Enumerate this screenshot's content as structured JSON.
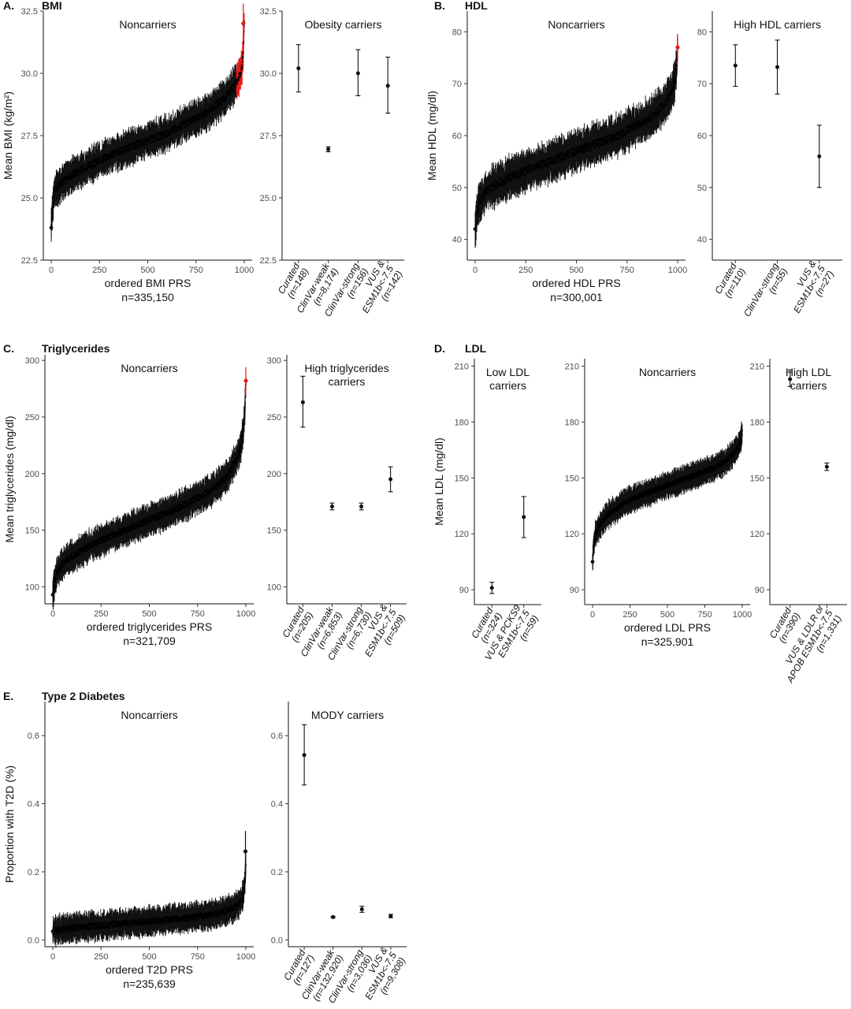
{
  "panels": [
    {
      "letter": "A.",
      "title": "BMI"
    },
    {
      "letter": "B.",
      "title": "HDL"
    },
    {
      "letter": "C.",
      "title": "Triglycerides"
    },
    {
      "letter": "D.",
      "title": "LDL"
    },
    {
      "letter": "E.",
      "title": "Type 2 Diabetes"
    }
  ],
  "chart_data": [
    {
      "id": "bmi-noncarriers",
      "type": "scatter",
      "panel": "A.",
      "title": "Noncarriers",
      "xlabel": "ordered BMI PRS",
      "xsublabel": "n=335,150",
      "ylabel": "Mean BMI (kg/m²)",
      "xlim": [
        0,
        1000
      ],
      "ylim": [
        22.5,
        32.5
      ],
      "xticks": [
        0,
        250,
        500,
        750,
        1000
      ],
      "yticks": [
        "22.5",
        "25.0",
        "27.5",
        "30.0",
        "32.5"
      ],
      "curve": {
        "x": [
          0,
          5,
          10,
          20,
          50,
          100,
          200,
          300,
          400,
          500,
          600,
          700,
          800,
          850,
          900,
          930,
          950,
          970,
          980,
          990,
          995,
          1000
        ],
        "y": [
          23.8,
          24.5,
          24.9,
          25.3,
          25.6,
          25.9,
          26.3,
          26.7,
          27.0,
          27.3,
          27.6,
          28.0,
          28.4,
          28.7,
          29.0,
          29.3,
          29.5,
          29.8,
          30.0,
          30.4,
          30.9,
          32.0
        ]
      },
      "error_halfwidth": 0.5,
      "highlight_from": 960,
      "highlight_color": "#e41a1c",
      "top_points": [
        {
          "x": 995,
          "y": 32.0,
          "err": 0.8
        }
      ]
    },
    {
      "id": "bmi-carriers",
      "type": "scatter",
      "panel": "A.",
      "title": "Obesity carriers",
      "ylim": [
        22.5,
        32.5
      ],
      "yticks": [
        "22.5",
        "25.0",
        "27.5",
        "30.0",
        "32.5"
      ],
      "categories": [
        "Curated\n(n=148)",
        "ClinVar-weak\n(n=8,174)",
        "ClinVar-strong\n(n=156)",
        "VUS &\nESM1b<-7.5\n(n=142)"
      ],
      "values": [
        30.2,
        26.95,
        30.0,
        29.5
      ],
      "lower": [
        29.25,
        26.85,
        29.1,
        28.4
      ],
      "upper": [
        31.15,
        27.05,
        30.95,
        30.65
      ]
    },
    {
      "id": "hdl-noncarriers",
      "type": "scatter",
      "panel": "B.",
      "title": "Noncarriers",
      "xlabel": "ordered HDL PRS",
      "xsublabel": "n=300,001",
      "ylabel": "Mean HDL (mg/dl)",
      "xlim": [
        0,
        1000
      ],
      "ylim": [
        36,
        84
      ],
      "xticks": [
        0,
        250,
        500,
        750,
        1000
      ],
      "yticks": [
        "40",
        "50",
        "60",
        "70",
        "80"
      ],
      "curve": {
        "x": [
          0,
          5,
          10,
          20,
          50,
          100,
          200,
          300,
          400,
          500,
          600,
          700,
          800,
          850,
          900,
          950,
          970,
          985,
          995,
          1000
        ],
        "y": [
          42,
          44,
          45.5,
          47,
          49,
          50.5,
          52.5,
          54,
          55.5,
          57,
          58.5,
          60,
          62,
          63,
          64.5,
          67,
          68.5,
          70.5,
          73,
          77
        ]
      },
      "error_halfwidth": 2.8,
      "highlight_from": 998,
      "highlight_color": "#e41a1c",
      "top_points": [
        {
          "x": 1000,
          "y": 77.0,
          "err": 2.0
        }
      ]
    },
    {
      "id": "hdl-carriers",
      "type": "scatter",
      "panel": "B.",
      "title": "High HDL carriers",
      "ylim": [
        36,
        84
      ],
      "yticks": [
        "40",
        "50",
        "60",
        "70",
        "80"
      ],
      "categories": [
        "Curated\n(n=110)",
        "ClinVar-strong\n(n=55)",
        "VUS &\nESM1b<-7.5\n(n=27)"
      ],
      "values": [
        73.5,
        73.2,
        56.0
      ],
      "lower": [
        69.5,
        68.0,
        50.0
      ],
      "upper": [
        77.5,
        78.4,
        62.0
      ]
    },
    {
      "id": "tg-noncarriers",
      "type": "scatter",
      "panel": "C.",
      "title": "Noncarriers",
      "xlabel": "ordered triglycerides PRS",
      "xsublabel": "n=321,709",
      "ylabel": "Mean triglycerides (mg/dl)",
      "xlim": [
        0,
        1000
      ],
      "ylim": [
        85,
        305
      ],
      "xticks": [
        0,
        250,
        500,
        750,
        1000
      ],
      "yticks": [
        "100",
        "150",
        "200",
        "250",
        "300"
      ],
      "curve": {
        "x": [
          0,
          5,
          10,
          20,
          50,
          100,
          200,
          300,
          400,
          500,
          600,
          700,
          800,
          850,
          900,
          950,
          970,
          985,
          995,
          1000
        ],
        "y": [
          93,
          100,
          106,
          112,
          120,
          127,
          137,
          145,
          152,
          159,
          166,
          174,
          183,
          189,
          197,
          212,
          222,
          235,
          255,
          282
        ]
      },
      "error_halfwidth": 10,
      "highlight_from": 998,
      "highlight_color": "#e41a1c",
      "top_points": [
        {
          "x": 1000,
          "y": 282,
          "err": 12
        }
      ]
    },
    {
      "id": "tg-carriers",
      "type": "scatter",
      "panel": "C.",
      "title": "High triglycerides\ncarriers",
      "ylim": [
        85,
        305
      ],
      "yticks": [
        "100",
        "150",
        "200",
        "250",
        "300"
      ],
      "categories": [
        "Curated\n(n=205)",
        "ClinVar-weak\n(n=6,853)",
        "ClinVar-strong\n(n=6,730)",
        "VUS &\nESM1b<-7.5\n(n=509)"
      ],
      "values": [
        263,
        171,
        171,
        195
      ],
      "lower": [
        241,
        168,
        168,
        184
      ],
      "upper": [
        286,
        174,
        174,
        206
      ]
    },
    {
      "id": "ldl-low-carriers",
      "type": "scatter",
      "panel": "D.",
      "title": "Low LDL\ncarriers",
      "ylabel": "Mean LDL (mg/dl)",
      "ylim": [
        82,
        214
      ],
      "yticks": [
        "90",
        "120",
        "150",
        "180",
        "210"
      ],
      "categories": [
        "Curated\n(n=324)",
        "VUS & PCKS9\nESM1b<-7.5\n(n=59)"
      ],
      "values": [
        91,
        129
      ],
      "lower": [
        88,
        118
      ],
      "upper": [
        94,
        140
      ]
    },
    {
      "id": "ldl-noncarriers",
      "type": "scatter",
      "panel": "D.",
      "title": "Noncarriers",
      "xlabel": "ordered LDL PRS",
      "xsublabel": "n=325,901",
      "xlim": [
        0,
        1000
      ],
      "ylim": [
        82,
        214
      ],
      "xticks": [
        0,
        250,
        500,
        750,
        1000
      ],
      "yticks": [
        "90",
        "120",
        "150",
        "180",
        "210"
      ],
      "curve": {
        "x": [
          0,
          5,
          10,
          20,
          50,
          100,
          200,
          300,
          400,
          500,
          600,
          700,
          800,
          850,
          900,
          950,
          970,
          985,
          995,
          1000
        ],
        "y": [
          105,
          112,
          116,
          120,
          125,
          130,
          136,
          140,
          143,
          146,
          149,
          152,
          155,
          157,
          160,
          164,
          166,
          169,
          172,
          174
        ]
      },
      "error_halfwidth": 5,
      "highlight_from": null,
      "top_points": []
    },
    {
      "id": "ldl-high-carriers",
      "type": "scatter",
      "panel": "D.",
      "title": "High  LDL\ncarriers",
      "ylim": [
        82,
        214
      ],
      "yticks": [
        "90",
        "120",
        "150",
        "180",
        "210"
      ],
      "categories": [
        "Curated\n(n=390)",
        "VUS & LDLR or\nAPOB ESM1b<-7.5\n(n=1,331)"
      ],
      "values": [
        203,
        156
      ],
      "lower": [
        199,
        154
      ],
      "upper": [
        208,
        158
      ]
    },
    {
      "id": "t2d-noncarriers",
      "type": "scatter",
      "panel": "E.",
      "title": "Noncarriers",
      "xlabel": "ordered T2D PRS",
      "xsublabel": "n=235,639",
      "ylabel": "Proportion with T2D (%)",
      "xlim": [
        0,
        1000
      ],
      "ylim": [
        -0.02,
        0.7
      ],
      "xticks": [
        0,
        250,
        500,
        750,
        1000
      ],
      "yticks": [
        "0.0",
        "0.2",
        "0.4",
        "0.6"
      ],
      "curve": {
        "x": [
          0,
          50,
          100,
          200,
          300,
          400,
          500,
          600,
          700,
          800,
          850,
          900,
          950,
          970,
          985,
          995,
          1000
        ],
        "y": [
          0.025,
          0.03,
          0.035,
          0.04,
          0.045,
          0.05,
          0.055,
          0.06,
          0.065,
          0.072,
          0.078,
          0.085,
          0.1,
          0.11,
          0.13,
          0.17,
          0.22
        ]
      },
      "error_halfwidth": 0.03,
      "highlight_from": null,
      "top_points": [
        {
          "x": 998,
          "y": 0.26,
          "err": 0.06
        }
      ]
    },
    {
      "id": "t2d-carriers",
      "type": "scatter",
      "panel": "E.",
      "title": "MODY carriers",
      "ylim": [
        -0.02,
        0.7
      ],
      "yticks": [
        "0.0",
        "0.2",
        "0.4",
        "0.6"
      ],
      "categories": [
        "Curated\n(n=127)",
        "ClinVar-weak\n(n=132,920)",
        "ClinVar-strong\n(n=3,036)",
        "VUS &\nESM1b<-7.5\n(n=9,308)"
      ],
      "values": [
        0.543,
        0.067,
        0.09,
        0.07
      ],
      "lower": [
        0.455,
        0.065,
        0.081,
        0.065
      ],
      "upper": [
        0.632,
        0.069,
        0.099,
        0.075
      ]
    }
  ]
}
